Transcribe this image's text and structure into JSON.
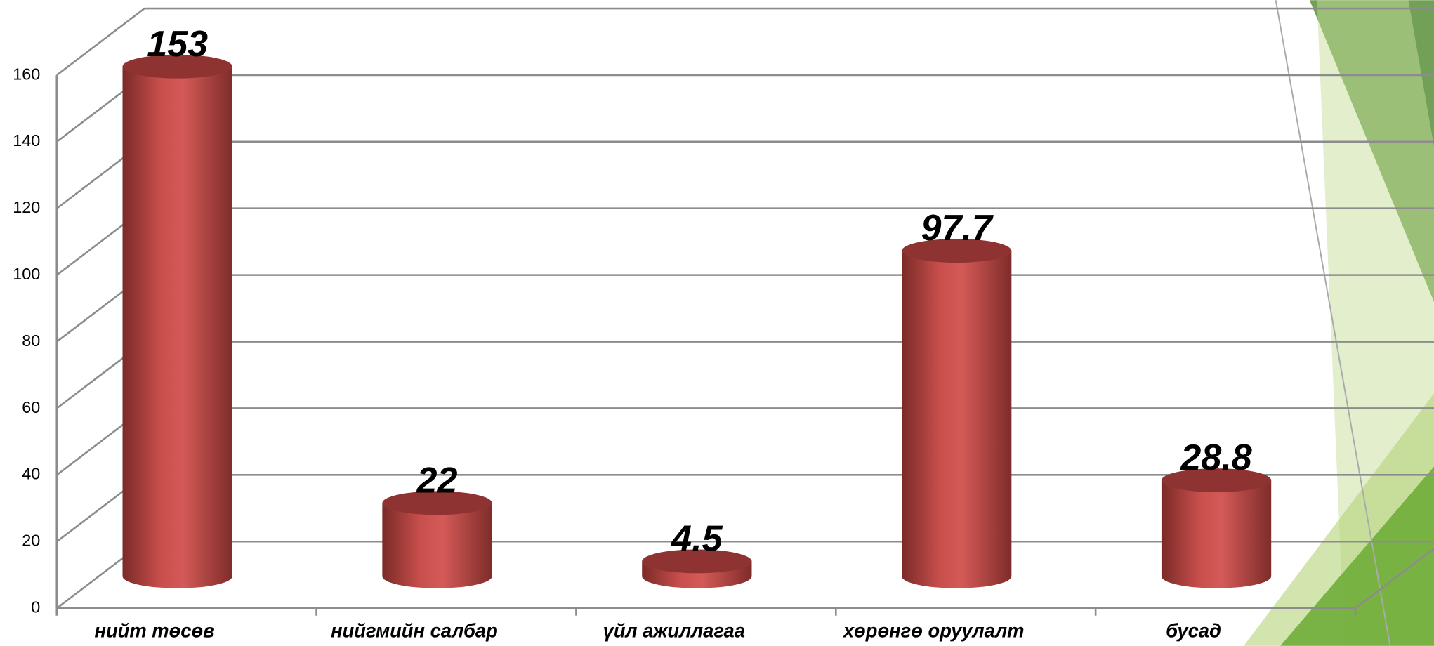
{
  "chart_data": {
    "type": "bar3d",
    "categories": [
      "нийт төсөв",
      "нийгмийн салбар",
      "үйл ажиллагаа",
      "хөрөнгө оруулалт",
      "бусад"
    ],
    "values": [
      153,
      22,
      4.5,
      97.7,
      28.8
    ],
    "color": "#c0504d",
    "ylim": [
      0,
      160
    ],
    "yticks": [
      0,
      20,
      40,
      60,
      80,
      100,
      120,
      140,
      160
    ],
    "grid": true
  }
}
